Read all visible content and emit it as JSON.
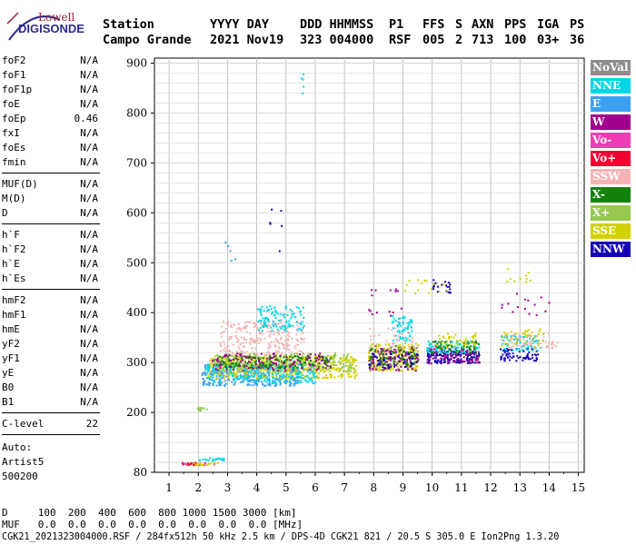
{
  "logo": {
    "top": "Lowell",
    "main": "DIGISONDE"
  },
  "header": {
    "col1": [
      "Station",
      "Campo Grande"
    ],
    "col2": [
      "YYYY DAY",
      "2021 Nov19"
    ],
    "col3": [
      "DDD HHMMSS",
      "323 004000"
    ],
    "col4": [
      "P1",
      "RSF"
    ],
    "col5": [
      "FFS",
      "005"
    ],
    "col6": [
      "S",
      "2"
    ],
    "col7": [
      "AXN",
      "713"
    ],
    "col8": [
      "PPS",
      "100"
    ],
    "col9": [
      "IGA",
      "03+"
    ],
    "col10": [
      "PS",
      "36"
    ]
  },
  "params": {
    "group1": [
      {
        "label": "foF2",
        "value": "N/A"
      },
      {
        "label": "foF1",
        "value": "N/A"
      },
      {
        "label": "foF1p",
        "value": "N/A"
      },
      {
        "label": "foE",
        "value": "N/A"
      },
      {
        "label": "foEp",
        "value": "0.46"
      },
      {
        "label": "fxI",
        "value": "N/A"
      },
      {
        "label": "foEs",
        "value": "N/A"
      },
      {
        "label": "fmin",
        "value": "N/A"
      }
    ],
    "group2": [
      {
        "label": "MUF(D)",
        "value": "N/A"
      },
      {
        "label": "M(D)",
        "value": "N/A"
      },
      {
        "label": "D",
        "value": "N/A"
      }
    ],
    "group3": [
      {
        "label": "h`F",
        "value": "N/A"
      },
      {
        "label": "h`F2",
        "value": "N/A"
      },
      {
        "label": "h`E",
        "value": "N/A"
      },
      {
        "label": "h`Es",
        "value": "N/A"
      }
    ],
    "group4": [
      {
        "label": "hmF2",
        "value": "N/A"
      },
      {
        "label": "hmF1",
        "value": "N/A"
      },
      {
        "label": "hmE",
        "value": "N/A"
      },
      {
        "label": "yF2",
        "value": "N/A"
      },
      {
        "label": "yF1",
        "value": "N/A"
      },
      {
        "label": "yE",
        "value": "N/A"
      },
      {
        "label": "B0",
        "value": "N/A"
      },
      {
        "label": "B1",
        "value": "N/A"
      }
    ],
    "group5": [
      {
        "label": "C-level",
        "value": "22"
      }
    ]
  },
  "auto": [
    "Auto:",
    "Artist5",
    "500200"
  ],
  "bottom": {
    "line1": "D     100  200  400  600  800 1000 1500 3000 [km]",
    "line2": "MUF   0.0  0.0  0.0  0.0  0.0  0.0  0.0  0.0 [MHz]",
    "line3": "CGK21_2021323004000.RSF / 284fx512h 50 kHz 2.5 km / DPS-4D CGK21 821 / 20.5 S 305.0 E Ion2Png 1.3.20"
  },
  "legend": [
    {
      "label": "NoVal",
      "color": "#8c8c8c"
    },
    {
      "label": "NNE",
      "color": "#00d7e6"
    },
    {
      "label": "E",
      "color": "#3ca0f0"
    },
    {
      "label": "W",
      "color": "#a0008c"
    },
    {
      "label": "Vo-",
      "color": "#f03cb4"
    },
    {
      "label": "Vo+",
      "color": "#f00032"
    },
    {
      "label": "SSW",
      "color": "#f5b4b4"
    },
    {
      "label": "X-",
      "color": "#14820a"
    },
    {
      "label": "X+",
      "color": "#96c850"
    },
    {
      "label": "SSE",
      "color": "#d2d200"
    },
    {
      "label": "NNW",
      "color": "#1400b4"
    }
  ],
  "chart_data": {
    "type": "scatter",
    "title": "",
    "xlabel": "",
    "ylabel": "",
    "xlim": [
      0.5,
      15.2
    ],
    "ylim": [
      80,
      910
    ],
    "x_ticks": [
      "1",
      "2",
      "3",
      "4",
      "5",
      "6",
      "7",
      "8",
      "9",
      "10",
      "11",
      "12",
      "13",
      "14",
      "15"
    ],
    "y_ticks": [
      "80",
      "200",
      "300",
      "400",
      "500",
      "600",
      "700",
      "800",
      "900"
    ],
    "grid": true,
    "clusters": [
      {
        "name": "SSW",
        "color": "#f5b4b4",
        "x": [
          2.7,
          5.6
        ],
        "y": [
          315,
          385
        ],
        "n": 260
      },
      {
        "name": "E",
        "color": "#3ca0f0",
        "x": [
          2.1,
          5.5
        ],
        "y": [
          255,
          300
        ],
        "n": 380
      },
      {
        "name": "SSE",
        "color": "#d2d200",
        "x": [
          2.3,
          7.4
        ],
        "y": [
          270,
          315
        ],
        "n": 500
      },
      {
        "name": "NNE",
        "color": "#00d7e6",
        "x": [
          2.2,
          6.0
        ],
        "y": [
          260,
          300
        ],
        "n": 220
      },
      {
        "name": "X+",
        "color": "#96c850",
        "x": [
          2.5,
          7.3
        ],
        "y": [
          285,
          320
        ],
        "n": 220
      },
      {
        "name": "X-",
        "color": "#14820a",
        "x": [
          2.5,
          6.5
        ],
        "y": [
          290,
          315
        ],
        "n": 150
      },
      {
        "name": "W",
        "color": "#a0008c",
        "x": [
          2.4,
          6.5
        ],
        "y": [
          285,
          320
        ],
        "n": 120
      },
      {
        "name": "NNE",
        "color": "#00d7e6",
        "x": [
          4.0,
          5.6
        ],
        "y": [
          365,
          415
        ],
        "n": 110
      },
      {
        "name": "SSE",
        "color": "#d2d200",
        "x": [
          7.8,
          9.5
        ],
        "y": [
          285,
          340
        ],
        "n": 220
      },
      {
        "name": "W",
        "color": "#a0008c",
        "x": [
          7.8,
          9.5
        ],
        "y": [
          285,
          330
        ],
        "n": 110
      },
      {
        "name": "X-",
        "color": "#14820a",
        "x": [
          7.8,
          9.5
        ],
        "y": [
          295,
          335
        ],
        "n": 80
      },
      {
        "name": "NNW",
        "color": "#1400b4",
        "x": [
          7.8,
          9.5
        ],
        "y": [
          290,
          320
        ],
        "n": 50
      },
      {
        "name": "NNE",
        "color": "#00d7e6",
        "x": [
          8.6,
          9.3
        ],
        "y": [
          345,
          395
        ],
        "n": 60
      },
      {
        "name": "SSW",
        "color": "#f5b4b4",
        "x": [
          7.8,
          9.5
        ],
        "y": [
          320,
          370
        ],
        "n": 40
      },
      {
        "name": "NNW",
        "color": "#1400b4",
        "x": [
          9.8,
          11.6
        ],
        "y": [
          300,
          325
        ],
        "n": 140
      },
      {
        "name": "W",
        "color": "#a0008c",
        "x": [
          9.8,
          11.6
        ],
        "y": [
          300,
          330
        ],
        "n": 90
      },
      {
        "name": "NNE",
        "color": "#00d7e6",
        "x": [
          9.8,
          11.6
        ],
        "y": [
          320,
          345
        ],
        "n": 90
      },
      {
        "name": "X-",
        "color": "#14820a",
        "x": [
          9.8,
          11.6
        ],
        "y": [
          320,
          345
        ],
        "n": 60
      },
      {
        "name": "SSE",
        "color": "#d2d200",
        "x": [
          10.0,
          11.5
        ],
        "y": [
          330,
          360
        ],
        "n": 40
      },
      {
        "name": "NNW",
        "color": "#1400b4",
        "x": [
          10.0,
          10.6
        ],
        "y": [
          440,
          470
        ],
        "n": 20
      },
      {
        "name": "SSE",
        "color": "#d2d200",
        "x": [
          9.0,
          10.6
        ],
        "y": [
          440,
          470
        ],
        "n": 15
      },
      {
        "name": "W",
        "color": "#a0008c",
        "x": [
          7.8,
          9.0
        ],
        "y": [
          395,
          450
        ],
        "n": 15
      },
      {
        "name": "NNW",
        "color": "#1400b4",
        "x": [
          12.3,
          13.6
        ],
        "y": [
          305,
          330
        ],
        "n": 70
      },
      {
        "name": "NNE",
        "color": "#00d7e6",
        "x": [
          12.3,
          13.7
        ],
        "y": [
          325,
          355
        ],
        "n": 70
      },
      {
        "name": "SSW",
        "color": "#f5b4b4",
        "x": [
          12.3,
          14.3
        ],
        "y": [
          330,
          360
        ],
        "n": 60
      },
      {
        "name": "SSE",
        "color": "#d2d200",
        "x": [
          12.3,
          13.8
        ],
        "y": [
          330,
          370
        ],
        "n": 40
      },
      {
        "name": "W",
        "color": "#a0008c",
        "x": [
          12.3,
          14.0
        ],
        "y": [
          390,
          440
        ],
        "n": 15
      },
      {
        "name": "SSE",
        "color": "#d2d200",
        "x": [
          12.5,
          13.4
        ],
        "y": [
          460,
          490
        ],
        "n": 10
      },
      {
        "name": "X+",
        "color": "#96c850",
        "x": [
          1.9,
          2.3
        ],
        "y": [
          205,
          212
        ],
        "n": 15
      },
      {
        "name": "Vo-",
        "color": "#f03cb4",
        "x": [
          1.5,
          2.6
        ],
        "y": [
          96,
          101
        ],
        "n": 25
      },
      {
        "name": "SSE",
        "color": "#d2d200",
        "x": [
          1.6,
          2.7
        ],
        "y": [
          96,
          101
        ],
        "n": 25
      },
      {
        "name": "NNE",
        "color": "#00d7e6",
        "x": [
          2.0,
          2.9
        ],
        "y": [
          105,
          111
        ],
        "n": 25
      },
      {
        "name": "Vo+",
        "color": "#f00032",
        "x": [
          1.4,
          1.9
        ],
        "y": [
          96,
          101
        ],
        "n": 10
      },
      {
        "name": "NNW",
        "color": "#1400b4",
        "x": [
          4.4,
          4.9
        ],
        "y": [
          505,
          615
        ],
        "n": 6
      },
      {
        "name": "E",
        "color": "#3ca0f0",
        "x": [
          2.7,
          3.3
        ],
        "y": [
          505,
          545
        ],
        "n": 5
      },
      {
        "name": "NNE",
        "color": "#00d7e6",
        "x": [
          5.5,
          5.6
        ],
        "y": [
          830,
          880
        ],
        "n": 5
      }
    ]
  }
}
